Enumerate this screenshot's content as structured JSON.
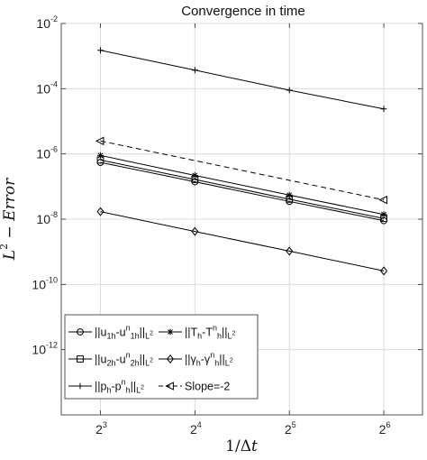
{
  "chart_data": {
    "type": "line",
    "title": "Convergence in time",
    "xlabel": "1/Δt",
    "ylabel": "L² − Error",
    "x_scale": "log2",
    "y_scale": "log10",
    "x": [
      8,
      16,
      32,
      64
    ],
    "x_tick_labels": [
      "2^3",
      "2^4",
      "2^5",
      "2^6"
    ],
    "y_tick_labels": [
      "10^-12",
      "10^-10",
      "10^-8",
      "10^-6",
      "10^-4",
      "10^-2"
    ],
    "xlim": [
      6,
      85
    ],
    "ylim": [
      1e-14,
      0.01
    ],
    "grid": true,
    "legend_placement": "bottom-left",
    "series": [
      {
        "name": "||u1h-u1h^n||L2",
        "marker": "circle",
        "dash": "solid",
        "values": [
          5.5e-07,
          1.4e-07,
          3.5e-08,
          9e-09
        ]
      },
      {
        "name": "||u2h-u2h^n||L2",
        "marker": "square",
        "dash": "solid",
        "values": [
          6.5e-07,
          1.65e-07,
          4.1e-08,
          1.05e-08
        ]
      },
      {
        "name": "||ph-ph^n||L2",
        "marker": "plus",
        "dash": "solid",
        "values": [
          0.0015,
          0.00037,
          9e-05,
          2.4e-05
        ]
      },
      {
        "name": "||Th-Th^n||L2",
        "marker": "asterisk",
        "dash": "solid",
        "values": [
          9e-07,
          2.2e-07,
          5.5e-08,
          1.4e-08
        ]
      },
      {
        "name": "||γh-γh^n||L2",
        "marker": "diamond",
        "dash": "solid",
        "values": [
          1.7e-08,
          4.2e-09,
          1.05e-09,
          2.6e-10
        ]
      },
      {
        "name": "Slope=-2",
        "marker": "triangle-left",
        "dash": "dashed",
        "x": [
          8,
          64
        ],
        "values": [
          2.5e-06,
          3.9e-08
        ]
      }
    ],
    "legend": {
      "entries": [
        {
          "series": 0,
          "parts": [
            [
              "||u",
              ""
            ],
            [
              "1h",
              "sub"
            ],
            [
              "-u",
              ""
            ],
            [
              "n",
              "sup"
            ],
            [
              "1h",
              "sub"
            ],
            [
              "||",
              ""
            ],
            [
              "L",
              "sub"
            ],
            [
              "2",
              "subsup"
            ]
          ]
        },
        {
          "series": 3,
          "parts": [
            [
              "||T",
              ""
            ],
            [
              "h",
              "sub"
            ],
            [
              "-T",
              ""
            ],
            [
              "n",
              "sup"
            ],
            [
              "h",
              "sub"
            ],
            [
              "||",
              ""
            ],
            [
              "L",
              "sub"
            ],
            [
              "2",
              "subsup"
            ]
          ]
        },
        {
          "series": 1,
          "parts": [
            [
              "||u",
              ""
            ],
            [
              "2h",
              "sub"
            ],
            [
              "-u",
              ""
            ],
            [
              "n",
              "sup"
            ],
            [
              "2h",
              "sub"
            ],
            [
              "||",
              ""
            ],
            [
              "L",
              "sub"
            ],
            [
              "2",
              "subsup"
            ]
          ]
        },
        {
          "series": 4,
          "parts": [
            [
              "||γ",
              ""
            ],
            [
              "h",
              "sub"
            ],
            [
              "-γ",
              ""
            ],
            [
              "n",
              "sup"
            ],
            [
              "h",
              "sub"
            ],
            [
              "||",
              ""
            ],
            [
              "L",
              "sub"
            ],
            [
              "2",
              "subsup"
            ]
          ]
        },
        {
          "series": 2,
          "parts": [
            [
              "||p",
              ""
            ],
            [
              "h",
              "sub"
            ],
            [
              "-p",
              ""
            ],
            [
              "n",
              "sup"
            ],
            [
              "h",
              "sub"
            ],
            [
              "||",
              ""
            ],
            [
              "L",
              "sub"
            ],
            [
              "2",
              "subsup"
            ]
          ]
        },
        {
          "series": 5,
          "parts": [
            [
              "Slope=-2",
              ""
            ]
          ]
        }
      ]
    },
    "colors": {
      "lines": "#000000",
      "grid": "#dcdcdc",
      "axes": "#262626",
      "background": "#ffffff"
    }
  }
}
